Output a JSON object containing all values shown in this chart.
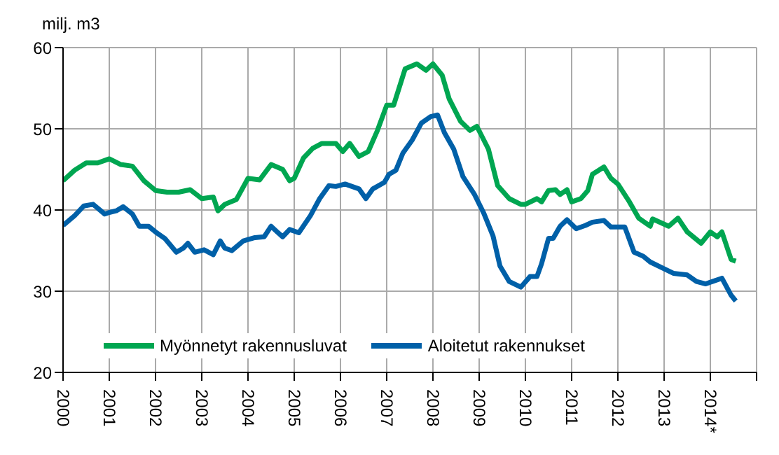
{
  "chart_data": {
    "type": "line",
    "ylabel": "milj. m3",
    "xlim": [
      2000,
      2015
    ],
    "xticks": [
      2000,
      2001,
      2002,
      2003,
      2004,
      2005,
      2006,
      2007,
      2008,
      2009,
      2010,
      2011,
      2012,
      2013,
      {
        "value": 2014,
        "label": "2014*"
      },
      {
        "value": 2015,
        "label": null
      }
    ],
    "ylim": [
      20,
      60
    ],
    "yticks": [
      20,
      30,
      40,
      50,
      60
    ],
    "grid": true,
    "legend": "bottom left",
    "marker": "none",
    "line_style": "solid",
    "series": [
      {
        "name": "Myönnetyt rakennusluvat",
        "color": "#00a651",
        "x": [
          2000,
          2000.25,
          2000.5,
          2000.75,
          2001,
          2001.25,
          2001.5,
          2001.75,
          2002,
          2002.25,
          2002.5,
          2002.75,
          2003,
          2003.25,
          2003.35,
          2003.5,
          2003.75,
          2004,
          2004.25,
          2004.5,
          2004.75,
          2004.9,
          2005,
          2005.2,
          2005.4,
          2005.6,
          2005.9,
          2006.05,
          2006.2,
          2006.4,
          2006.6,
          2006.8,
          2007,
          2007.15,
          2007.4,
          2007.65,
          2007.85,
          2008,
          2008.2,
          2008.35,
          2008.6,
          2008.8,
          2008.95,
          2009.2,
          2009.4,
          2009.65,
          2009.9,
          2010,
          2010.25,
          2010.35,
          2010.5,
          2010.65,
          2010.75,
          2010.9,
          2011,
          2011.2,
          2011.35,
          2011.45,
          2011.7,
          2011.85,
          2012,
          2012.25,
          2012.45,
          2012.7,
          2012.75,
          2013.1,
          2013.3,
          2013.5,
          2013.8,
          2014,
          2014.15,
          2014.25,
          2014.45,
          2014.55
        ],
        "values": [
          43.6,
          44.9,
          45.8,
          45.8,
          46.3,
          45.6,
          45.4,
          43.6,
          42.4,
          42.2,
          42.2,
          42.5,
          41.4,
          41.6,
          39.9,
          40.7,
          41.3,
          43.9,
          43.7,
          45.6,
          45,
          43.6,
          43.9,
          46.4,
          47.6,
          48.2,
          48.2,
          47.2,
          48.2,
          46.6,
          47.2,
          49.8,
          52.9,
          52.9,
          57.4,
          58,
          57.2,
          58,
          56.6,
          53.7,
          50.9,
          49.8,
          50.3,
          47.5,
          43,
          41.4,
          40.7,
          40.7,
          41.4,
          41,
          42.4,
          42.5,
          41.9,
          42.5,
          41,
          41.4,
          42.4,
          44.4,
          45.3,
          43.9,
          43.2,
          41,
          39,
          38,
          38.9,
          38,
          39,
          37.3,
          35.9,
          37.3,
          36.7,
          37.3,
          33.9,
          33.7
        ]
      },
      {
        "name": "Aloitetut rakennukset",
        "color": "#0060a8",
        "x": [
          2000,
          2000.25,
          2000.45,
          2000.65,
          2000.9,
          2001,
          2001.15,
          2001.3,
          2001.5,
          2001.65,
          2001.85,
          2002,
          2002.2,
          2002.45,
          2002.6,
          2002.7,
          2002.85,
          2003.05,
          2003.25,
          2003.4,
          2003.5,
          2003.65,
          2003.9,
          2004.15,
          2004.35,
          2004.5,
          2004.65,
          2004.75,
          2004.9,
          2005.1,
          2005.35,
          2005.55,
          2005.75,
          2005.9,
          2006.1,
          2006.25,
          2006.4,
          2006.55,
          2006.7,
          2006.95,
          2007.05,
          2007.2,
          2007.35,
          2007.55,
          2007.75,
          2007.95,
          2008.1,
          2008.25,
          2008.45,
          2008.65,
          2008.9,
          2009.1,
          2009.3,
          2009.45,
          2009.65,
          2009.9,
          2010.1,
          2010.25,
          2010.35,
          2010.5,
          2010.6,
          2010.75,
          2010.9,
          2011.1,
          2011.3,
          2011.45,
          2011.7,
          2011.85,
          2012.15,
          2012.35,
          2012.55,
          2012.7,
          2012.95,
          2013.2,
          2013.5,
          2013.7,
          2013.9,
          2014.25,
          2014.45,
          2014.55
        ],
        "values": [
          38.1,
          39.3,
          40.5,
          40.7,
          39.5,
          39.7,
          39.9,
          40.4,
          39.5,
          38,
          38,
          37.3,
          36.5,
          34.8,
          35.3,
          35.9,
          34.8,
          35.1,
          34.5,
          36.2,
          35.3,
          35,
          36.2,
          36.6,
          36.7,
          38,
          37.2,
          36.7,
          37.6,
          37.2,
          39.3,
          41.4,
          43,
          42.9,
          43.2,
          42.9,
          42.6,
          41.4,
          42.6,
          43.4,
          44.4,
          44.9,
          47,
          48.6,
          50.7,
          51.5,
          51.7,
          49.5,
          47.5,
          44.1,
          41.9,
          39.6,
          36.8,
          33.1,
          31.2,
          30.5,
          31.8,
          31.8,
          33.4,
          36.5,
          36.5,
          38,
          38.8,
          37.7,
          38.1,
          38.5,
          38.7,
          37.9,
          37.9,
          34.8,
          34.3,
          33.6,
          32.9,
          32.2,
          32,
          31.2,
          30.9,
          31.6,
          29.5,
          28.8
        ]
      }
    ]
  }
}
